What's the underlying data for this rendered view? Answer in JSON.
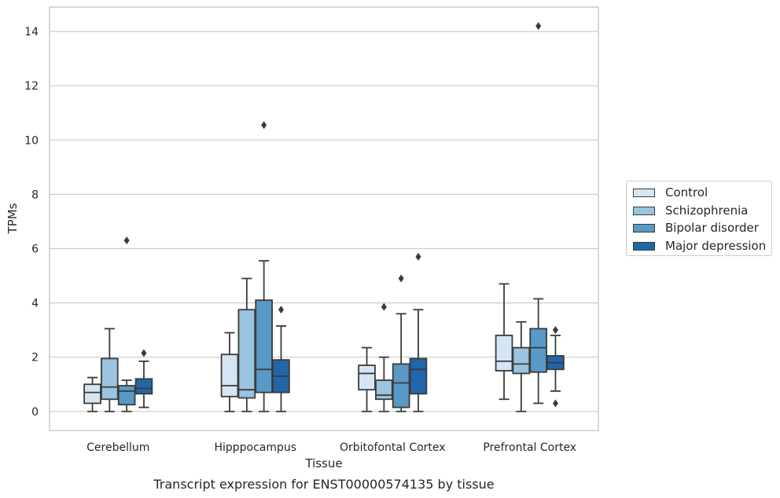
{
  "chart_data": {
    "type": "box",
    "title": "Transcript expression for ENST00000574135 by tissue",
    "xlabel": "Tissue",
    "ylabel": "TPMs",
    "ylim": [
      -0.7,
      14.9
    ],
    "yticks": [
      0,
      2,
      4,
      6,
      8,
      10,
      12,
      14
    ],
    "grid": "horizontal",
    "legend_position": "right",
    "categories": [
      "Cerebellum",
      "Hipppocampus",
      "Orbitofontal Cortex",
      "Prefrontal Cortex"
    ],
    "series": [
      {
        "name": "Control",
        "color": "#d6e5f3",
        "boxes": [
          {
            "whisker_low": 0.0,
            "q1": 0.3,
            "median": 0.7,
            "q3": 1.0,
            "whisker_high": 1.25,
            "outliers": []
          },
          {
            "whisker_low": 0.0,
            "q1": 0.55,
            "median": 0.95,
            "q3": 2.1,
            "whisker_high": 2.9,
            "outliers": []
          },
          {
            "whisker_low": 0.0,
            "q1": 0.8,
            "median": 1.4,
            "q3": 1.7,
            "whisker_high": 2.35,
            "outliers": []
          },
          {
            "whisker_low": 0.45,
            "q1": 1.5,
            "median": 1.85,
            "q3": 2.8,
            "whisker_high": 4.7,
            "outliers": []
          }
        ]
      },
      {
        "name": "Schizophrenia",
        "color": "#9ac4df",
        "boxes": [
          {
            "whisker_low": 0.0,
            "q1": 0.45,
            "median": 0.9,
            "q3": 1.95,
            "whisker_high": 3.05,
            "outliers": []
          },
          {
            "whisker_low": 0.0,
            "q1": 0.5,
            "median": 0.8,
            "q3": 3.75,
            "whisker_high": 4.9,
            "outliers": []
          },
          {
            "whisker_low": 0.0,
            "q1": 0.45,
            "median": 0.6,
            "q3": 1.15,
            "whisker_high": 2.0,
            "outliers": [
              3.85
            ]
          },
          {
            "whisker_low": 0.0,
            "q1": 1.4,
            "median": 1.75,
            "q3": 2.35,
            "whisker_high": 3.3,
            "outliers": []
          }
        ]
      },
      {
        "name": "Bipolar disorder",
        "color": "#5899c5",
        "boxes": [
          {
            "whisker_low": 0.0,
            "q1": 0.25,
            "median": 0.75,
            "q3": 0.95,
            "whisker_high": 1.15,
            "outliers": [
              6.3
            ]
          },
          {
            "whisker_low": 0.0,
            "q1": 0.7,
            "median": 1.55,
            "q3": 4.1,
            "whisker_high": 5.55,
            "outliers": [
              10.55
            ]
          },
          {
            "whisker_low": 0.0,
            "q1": 0.15,
            "median": 1.05,
            "q3": 1.75,
            "whisker_high": 3.6,
            "outliers": [
              4.9
            ]
          },
          {
            "whisker_low": 0.3,
            "q1": 1.45,
            "median": 2.35,
            "q3": 3.05,
            "whisker_high": 4.15,
            "outliers": [
              14.2
            ]
          }
        ]
      },
      {
        "name": "Major depression",
        "color": "#2166a8",
        "boxes": [
          {
            "whisker_low": 0.15,
            "q1": 0.65,
            "median": 0.85,
            "q3": 1.2,
            "whisker_high": 1.85,
            "outliers": [
              2.15
            ]
          },
          {
            "whisker_low": 0.0,
            "q1": 0.7,
            "median": 1.3,
            "q3": 1.9,
            "whisker_high": 3.15,
            "outliers": [
              3.75
            ]
          },
          {
            "whisker_low": 0.0,
            "q1": 0.65,
            "median": 1.55,
            "q3": 1.95,
            "whisker_high": 3.75,
            "outliers": [
              5.7
            ]
          },
          {
            "whisker_low": 0.75,
            "q1": 1.55,
            "median": 1.8,
            "q3": 2.05,
            "whisker_high": 2.8,
            "outliers": [
              3.0,
              0.3
            ]
          }
        ]
      }
    ]
  }
}
